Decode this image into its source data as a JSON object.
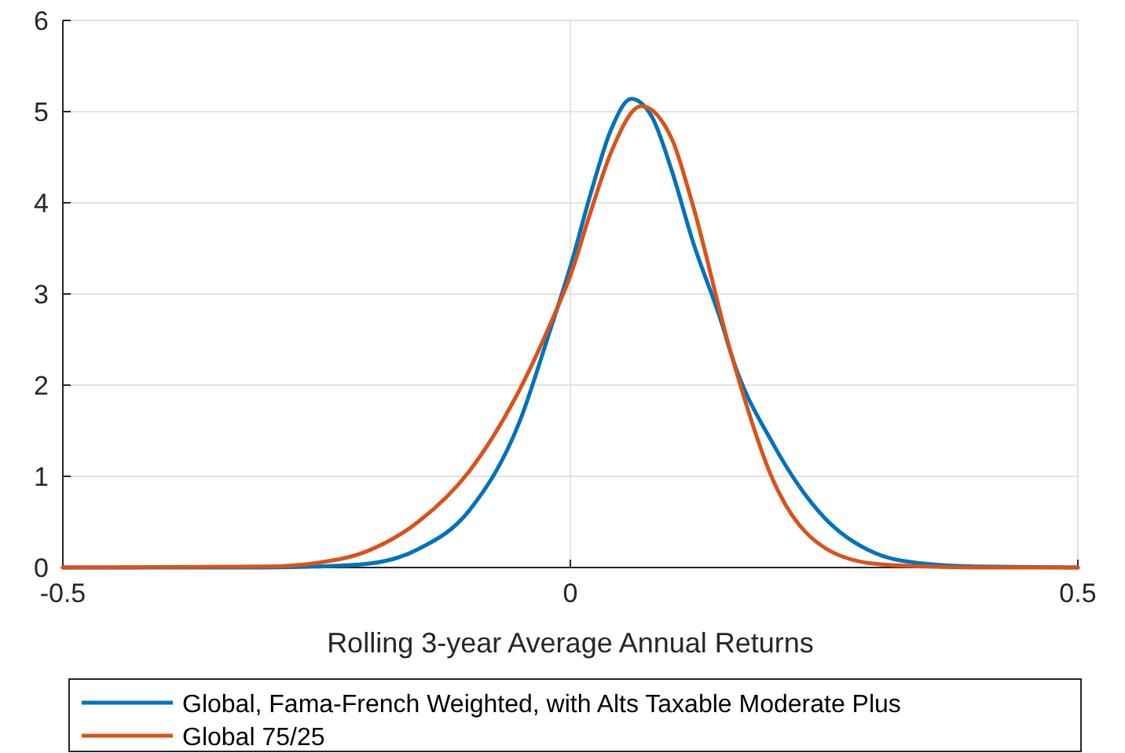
{
  "chart_data": {
    "type": "line",
    "xlabel": "Rolling 3-year Average Annual Returns",
    "xlim": [
      -0.5,
      0.5
    ],
    "xticks": [
      -0.5,
      0,
      0.5
    ],
    "ylim": [
      0,
      6
    ],
    "yticks": [
      0,
      1,
      2,
      3,
      4,
      5,
      6
    ],
    "grid": true,
    "legend": "bottom",
    "line_style": "solid",
    "marker": "none",
    "series": [
      {
        "name": "Global, Fama-French Weighted, with Alts Taxable Moderate Plus",
        "color": "#0072bd",
        "x": [
          -0.5,
          -0.3,
          -0.25,
          -0.2,
          -0.15,
          -0.1,
          -0.05,
          -0.02,
          0,
          0.02,
          0.04,
          0.06,
          0.08,
          0.1,
          0.12,
          0.15,
          0.159,
          0.2,
          0.25,
          0.3,
          0.35,
          0.4,
          0.5
        ],
        "values": [
          0,
          0,
          0.01,
          0.04,
          0.2,
          0.62,
          1.6,
          2.6,
          3.3,
          4.1,
          4.8,
          5.14,
          4.95,
          4.35,
          3.6,
          2.65,
          2.32,
          1.35,
          0.55,
          0.16,
          0.04,
          0.01,
          0
        ]
      },
      {
        "name": "Global 75/25",
        "color": "#d95319",
        "x": [
          -0.5,
          -0.3,
          -0.25,
          -0.2,
          -0.15,
          -0.1,
          -0.05,
          -0.019,
          0,
          0.02,
          0.04,
          0.07,
          0.1,
          0.12,
          0.159,
          0.2,
          0.25,
          0.3,
          0.35,
          0.4,
          0.5
        ],
        "values": [
          0,
          0.01,
          0.05,
          0.18,
          0.5,
          1.05,
          1.95,
          2.69,
          3.2,
          3.9,
          4.55,
          5.06,
          4.7,
          4.0,
          2.32,
          0.95,
          0.22,
          0.04,
          0.01,
          0,
          0
        ]
      }
    ]
  }
}
